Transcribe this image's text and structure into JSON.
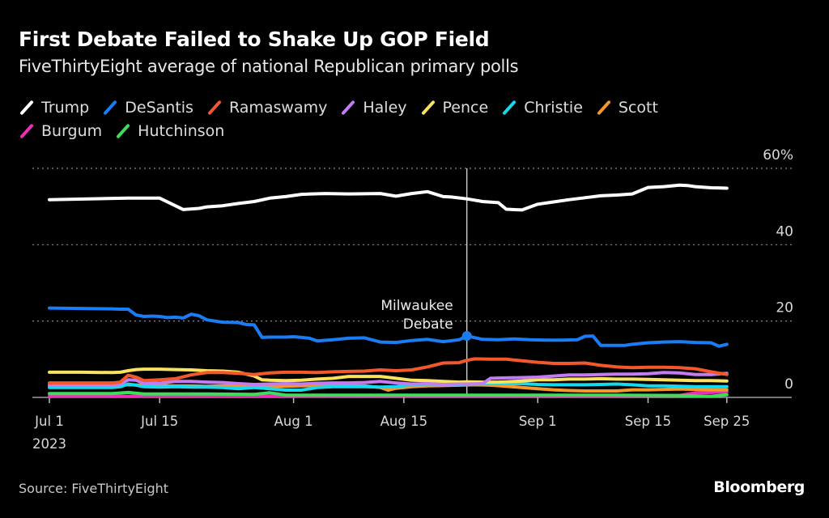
{
  "chart_data": {
    "type": "line",
    "title": "First Debate Failed to Shake Up GOP Field",
    "subtitle": "FiveThirtyEight average of national Republican primary polls",
    "xlabel": "",
    "ylabel": "",
    "ylim": [
      0,
      60
    ],
    "yticks": [
      {
        "value": 0,
        "label": "0"
      },
      {
        "value": 20,
        "label": "20"
      },
      {
        "value": 40,
        "label": "40"
      },
      {
        "value": 60,
        "label": "60%"
      }
    ],
    "x_domain_days": [
      0,
      86
    ],
    "xticks": [
      {
        "day": 0,
        "label": "Jul 1",
        "sublabel": "2023"
      },
      {
        "day": 14,
        "label": "Jul 15",
        "sublabel": ""
      },
      {
        "day": 31,
        "label": "Aug 1",
        "sublabel": ""
      },
      {
        "day": 45,
        "label": "Aug 15",
        "sublabel": ""
      },
      {
        "day": 62,
        "label": "Sep 1",
        "sublabel": ""
      },
      {
        "day": 76,
        "label": "Sep 15",
        "sublabel": ""
      },
      {
        "day": 86,
        "label": "Sep 25",
        "sublabel": ""
      }
    ],
    "grid": true,
    "legend_position": "top-left",
    "annotation": {
      "day": 53,
      "label_line1": "Milwaukee",
      "label_line2": "Debate",
      "marker_series": "DeSantis",
      "marker_value": 16.1
    },
    "series": [
      {
        "name": "Trump",
        "color": "#ffffff",
        "x": [
          0,
          5,
          10,
          14,
          17,
          19,
          20,
          22,
          24,
          26,
          28,
          30,
          32,
          35,
          38,
          42,
          44,
          46,
          48,
          50,
          51,
          53,
          55,
          57,
          58,
          60,
          62,
          64,
          66,
          68,
          70,
          72,
          74,
          76,
          78,
          80,
          81,
          82,
          84,
          86
        ],
        "y": [
          51.8,
          52,
          52.2,
          52.2,
          49.2,
          49.5,
          49.9,
          50.2,
          50.8,
          51.3,
          52.2,
          52.6,
          53.2,
          53.4,
          53.3,
          53.4,
          52.7,
          53.4,
          53.9,
          52.6,
          52.5,
          52,
          51.3,
          51,
          49.3,
          49.1,
          50.6,
          51.2,
          51.8,
          52.3,
          52.8,
          53,
          53.3,
          55,
          55.2,
          55.6,
          55.5,
          55.2,
          54.9,
          54.8
        ]
      },
      {
        "name": "DeSantis",
        "color": "#1a7df5",
        "x": [
          0,
          4,
          8,
          9,
          10,
          11,
          12,
          13,
          14,
          15,
          16,
          17,
          18,
          19,
          20,
          22,
          24,
          25,
          26,
          27,
          28,
          29,
          30,
          31,
          32,
          33,
          34,
          36,
          38,
          40,
          42,
          44,
          46,
          48,
          50,
          52,
          53,
          55,
          57,
          59,
          61,
          63,
          65,
          67,
          68,
          69,
          70,
          71,
          72,
          73,
          74,
          76,
          78,
          80,
          82,
          84,
          85,
          86
        ],
        "y": [
          23.4,
          23.3,
          23.2,
          23.1,
          23.1,
          21.6,
          21.2,
          21.3,
          21.2,
          20.9,
          21,
          20.8,
          21.8,
          21.4,
          20.3,
          19.7,
          19.6,
          19.1,
          19,
          15.7,
          15.8,
          15.8,
          15.8,
          15.9,
          15.7,
          15.5,
          14.8,
          15.1,
          15.5,
          15.6,
          14.5,
          14.4,
          14.9,
          15.2,
          14.6,
          15.1,
          16.1,
          15.2,
          15.1,
          15.3,
          15.1,
          15.0,
          15.0,
          15.1,
          16.0,
          16.1,
          13.6,
          13.6,
          13.6,
          13.6,
          13.9,
          14.3,
          14.5,
          14.6,
          14.4,
          14.3,
          13.4,
          13.9
        ]
      },
      {
        "name": "Ramaswamy",
        "color": "#f2582c",
        "x": [
          0,
          4,
          8,
          9,
          10,
          11,
          12,
          14,
          16,
          18,
          20,
          22,
          24,
          26,
          28,
          30,
          32,
          34,
          36,
          38,
          40,
          42,
          44,
          46,
          48,
          50,
          52,
          53,
          54,
          56,
          58,
          60,
          62,
          64,
          66,
          68,
          70,
          72,
          74,
          76,
          78,
          80,
          82,
          84,
          86
        ],
        "y": [
          3.8,
          3.8,
          3.8,
          4.0,
          5.8,
          5.3,
          4.4,
          4.6,
          4.9,
          5.9,
          6.5,
          6.5,
          6.3,
          6.0,
          6.4,
          6.6,
          6.6,
          6.5,
          6.7,
          6.8,
          6.9,
          7.2,
          7.0,
          7.2,
          8.0,
          9.0,
          9.1,
          9.7,
          10.1,
          10.0,
          10.0,
          9.6,
          9.2,
          8.9,
          8.9,
          9.0,
          8.4,
          8.0,
          7.8,
          7.9,
          7.9,
          7.8,
          7.5,
          6.7,
          6.0
        ]
      },
      {
        "name": "Haley",
        "color": "#c37cf2",
        "x": [
          0,
          8,
          9,
          10,
          11,
          12,
          14,
          16,
          18,
          20,
          22,
          24,
          26,
          28,
          30,
          32,
          34,
          36,
          38,
          40,
          42,
          44,
          46,
          48,
          50,
          52,
          53,
          55,
          56,
          58,
          60,
          62,
          64,
          66,
          68,
          70,
          72,
          74,
          76,
          78,
          80,
          82,
          84,
          86
        ],
        "y": [
          3.3,
          3.3,
          3.5,
          4.6,
          4.5,
          3.7,
          3.7,
          4.2,
          4.2,
          4.0,
          3.9,
          3.6,
          3.4,
          3.5,
          3.6,
          3.5,
          3.7,
          3.8,
          3.8,
          3.9,
          4.2,
          3.8,
          3.5,
          3.6,
          3.4,
          3.5,
          3.5,
          3.6,
          5.0,
          5.1,
          5.2,
          5.3,
          5.6,
          5.9,
          5.9,
          6.0,
          6.1,
          6.1,
          6.2,
          6.5,
          6.4,
          6.0,
          6.0,
          6.3
        ]
      },
      {
        "name": "Pence",
        "color": "#f8e25e",
        "x": [
          0,
          4,
          8,
          9,
          10,
          11,
          12,
          14,
          16,
          18,
          20,
          22,
          24,
          26,
          27,
          28,
          30,
          32,
          34,
          36,
          38,
          40,
          42,
          44,
          46,
          48,
          50,
          52,
          53,
          55,
          57,
          58,
          60,
          62,
          64,
          66,
          68,
          70,
          72,
          74,
          76,
          78,
          80,
          82,
          84,
          86
        ],
        "y": [
          6.6,
          6.6,
          6.5,
          6.6,
          7.0,
          7.3,
          7.4,
          7.4,
          7.3,
          7.2,
          7.0,
          6.9,
          6.6,
          5.6,
          4.6,
          4.5,
          4.4,
          4.5,
          4.8,
          5.0,
          5.5,
          5.5,
          5.5,
          5.0,
          4.5,
          4.4,
          4.2,
          4.0,
          4.1,
          4.0,
          4.0,
          4.1,
          4.3,
          4.6,
          4.6,
          4.8,
          4.8,
          4.9,
          4.8,
          4.8,
          4.7,
          4.6,
          4.5,
          4.4,
          4.4,
          4.3
        ]
      },
      {
        "name": "Christie",
        "color": "#16d9f0",
        "x": [
          0,
          8,
          9,
          10,
          11,
          12,
          14,
          16,
          18,
          20,
          22,
          24,
          26,
          28,
          30,
          32,
          34,
          36,
          38,
          40,
          42,
          44,
          46,
          48,
          50,
          52,
          54,
          56,
          58,
          60,
          62,
          64,
          66,
          68,
          70,
          72,
          74,
          76,
          78,
          80,
          82,
          84,
          86
        ],
        "y": [
          2.6,
          2.6,
          2.8,
          3.5,
          3.2,
          2.8,
          2.7,
          2.8,
          2.7,
          2.7,
          2.6,
          2.3,
          2.6,
          2.3,
          1.9,
          1.9,
          2.6,
          2.8,
          2.8,
          2.8,
          2.7,
          2.8,
          3.3,
          3.5,
          3.4,
          3.4,
          3.5,
          3.6,
          3.6,
          3.6,
          3.4,
          3.3,
          3.3,
          3.3,
          3.4,
          3.5,
          3.3,
          3.0,
          3.0,
          2.9,
          2.8,
          2.8,
          2.8
        ]
      },
      {
        "name": "Scott",
        "color": "#f5982a",
        "x": [
          0,
          8,
          10,
          12,
          14,
          16,
          18,
          20,
          22,
          24,
          26,
          28,
          30,
          32,
          34,
          36,
          38,
          40,
          42,
          43,
          44,
          46,
          48,
          50,
          52,
          54,
          56,
          58,
          60,
          62,
          64,
          66,
          68,
          70,
          72,
          74,
          76,
          78,
          80,
          82,
          84,
          86
        ],
        "y": [
          3.1,
          3.1,
          3.3,
          3.2,
          3.1,
          3.0,
          3.0,
          2.9,
          3.0,
          3.0,
          2.9,
          2.9,
          2.9,
          3.0,
          3.2,
          3.2,
          3.0,
          3.0,
          2.6,
          1.9,
          2.4,
          2.8,
          3.0,
          3.1,
          3.2,
          3.3,
          3.2,
          2.9,
          2.6,
          2.3,
          2.0,
          1.8,
          1.7,
          1.7,
          1.7,
          2.0,
          2.0,
          2.1,
          2.2,
          2.1,
          2.0,
          2.0
        ]
      },
      {
        "name": "Burgum",
        "color": "#ec2fb7",
        "x": [
          0,
          10,
          20,
          30,
          40,
          50,
          60,
          70,
          80,
          82,
          84,
          86
        ],
        "y": [
          0.3,
          0.3,
          0.3,
          0.3,
          0.4,
          0.4,
          0.4,
          0.4,
          0.5,
          1.2,
          1.3,
          1.5
        ]
      },
      {
        "name": "Hutchinson",
        "color": "#3ddd5a",
        "x": [
          0,
          8,
          10,
          12,
          20,
          26,
          28,
          30,
          40,
          50,
          60,
          70,
          80,
          84,
          86
        ],
        "y": [
          1.0,
          1.0,
          1.3,
          0.9,
          0.9,
          0.8,
          1.2,
          0.6,
          0.6,
          0.6,
          0.6,
          0.6,
          0.5,
          0.3,
          0.7
        ]
      }
    ]
  },
  "legend": [
    {
      "name": "Trump",
      "color": "#ffffff"
    },
    {
      "name": "DeSantis",
      "color": "#1a7df5"
    },
    {
      "name": "Ramaswamy",
      "color": "#f2582c"
    },
    {
      "name": "Haley",
      "color": "#c37cf2"
    },
    {
      "name": "Pence",
      "color": "#f8e25e"
    },
    {
      "name": "Christie",
      "color": "#16d9f0"
    },
    {
      "name": "Scott",
      "color": "#f5982a"
    },
    {
      "name": "Burgum",
      "color": "#ec2fb7"
    },
    {
      "name": "Hutchinson",
      "color": "#3ddd5a"
    }
  ],
  "footer": {
    "source": "Source: FiveThirtyEight",
    "brand": "Bloomberg"
  }
}
